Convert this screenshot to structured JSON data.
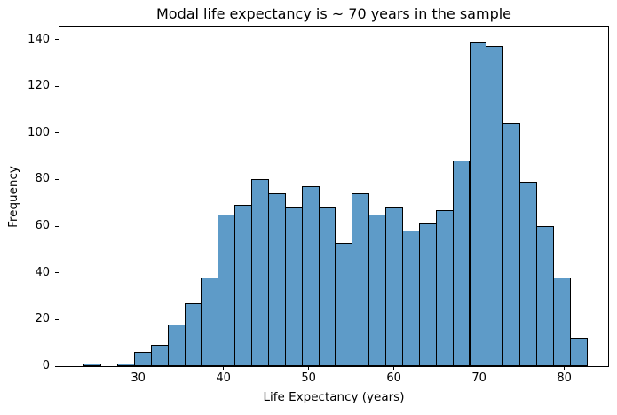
{
  "chart_data": {
    "type": "bar",
    "subtype": "histogram",
    "title": "Modal life expectancy is ~ 70 years in the sample",
    "xlabel": "Life Expectancy (years)",
    "ylabel": "Frequency",
    "bin_start": 23.599,
    "bin_width": 1.9668,
    "counts": [
      1,
      0,
      1,
      6,
      9,
      18,
      27,
      38,
      65,
      69,
      80,
      74,
      68,
      77,
      68,
      53,
      74,
      65,
      68,
      58,
      61,
      67,
      88,
      139,
      137,
      104,
      79,
      60,
      38,
      12
    ],
    "xticks": [
      30,
      40,
      50,
      60,
      70,
      80
    ],
    "yticks": [
      0,
      20,
      40,
      60,
      80,
      100,
      120,
      140
    ],
    "xlim": [
      20.76,
      85.14
    ],
    "ylim": [
      0,
      145.5
    ],
    "grid": false,
    "legend_position": "none",
    "bar_color": "#5e9bc8",
    "bar_edge_color": "#000000",
    "background_color": "#ffffff",
    "total_observations": 1704
  }
}
